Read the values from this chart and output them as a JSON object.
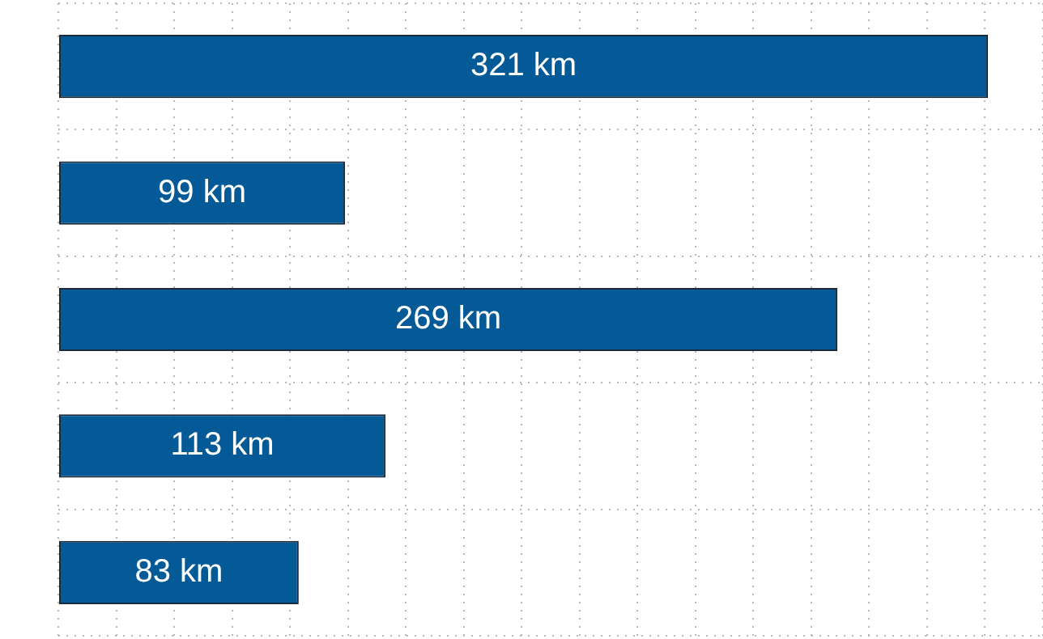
{
  "chart_data": {
    "type": "bar",
    "orientation": "horizontal",
    "categories": [
      null,
      null,
      null,
      null,
      null
    ],
    "values": [
      321,
      99,
      269,
      113,
      83
    ],
    "value_labels": [
      "321 km",
      "99 km",
      "269 km",
      "113 km",
      "83 km"
    ],
    "color": "#045a96",
    "grid": true,
    "tick_labels": false,
    "legend": false
  }
}
